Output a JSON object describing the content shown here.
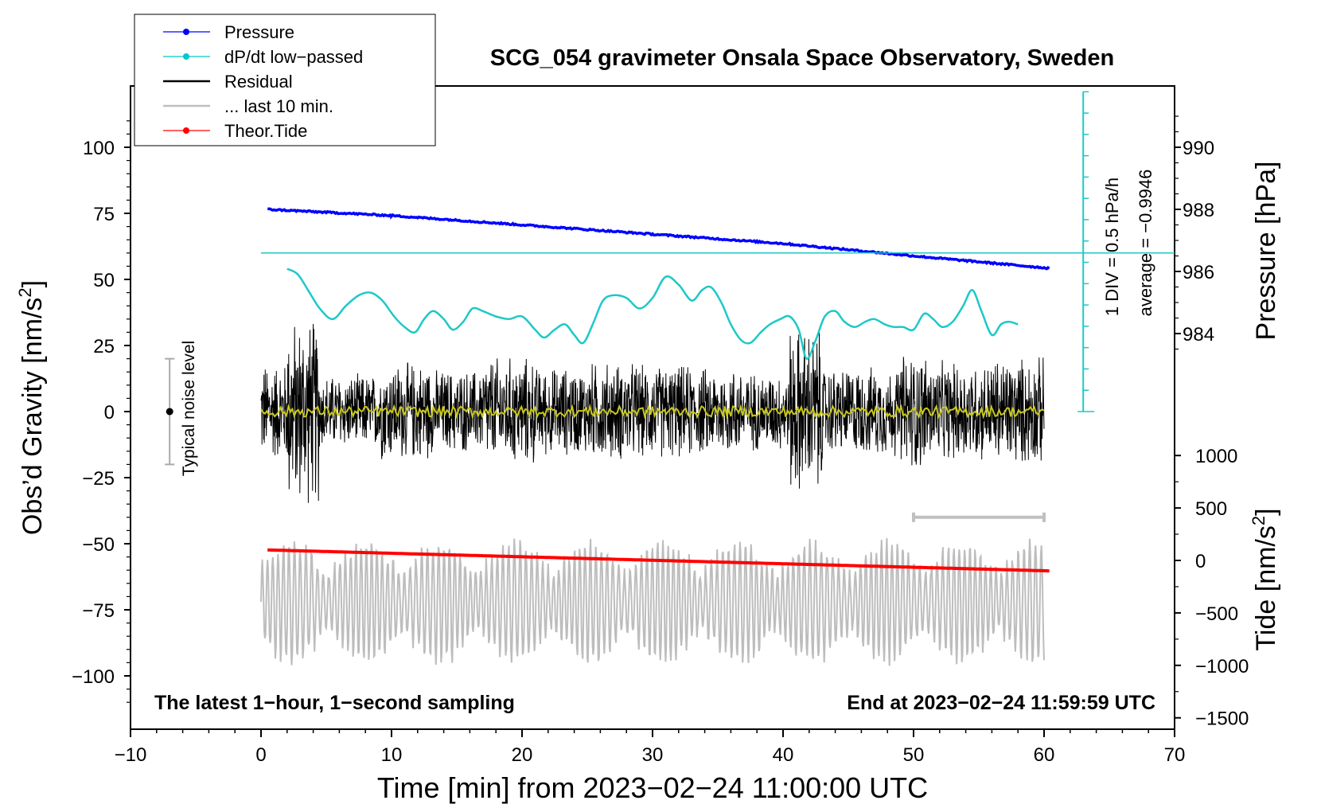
{
  "chart_data": {
    "type": "line",
    "title": "SCG_054 gravimeter Onsala Space Observatory, Sweden",
    "xlabel": "Time [min] from 2023−02−24 11:00:00 UTC",
    "ylabel_left": "Obs’d Gravity [nm/s",
    "ylabel_left_sup": "2",
    "ylabel_left_end": "]",
    "ylabel_pressure": "Pressure [hPa]",
    "ylabel_tide": "Tide [nm/s",
    "ylabel_tide_sup": "2",
    "ylabel_tide_end": "]",
    "xlim": [
      -10,
      70
    ],
    "x_ticks": [
      -10,
      0,
      10,
      20,
      30,
      40,
      50,
      60,
      70
    ],
    "x_tick_labels": [
      "−10",
      "0",
      "10",
      "20",
      "30",
      "40",
      "50",
      "60",
      "70"
    ],
    "ylim_gravity": [
      -120,
      120
    ],
    "gravity_ticks": [
      100,
      75,
      50,
      25,
      0,
      -25,
      -50,
      -75,
      -100
    ],
    "gravity_tick_labels": [
      "100",
      "75",
      "50",
      "25",
      "0",
      "−25",
      "−50",
      "−75",
      "−100"
    ],
    "pressure_ticks": [
      990,
      988,
      986,
      984
    ],
    "pressure_tick_labels": [
      "990",
      "988",
      "986",
      "984"
    ],
    "tide_ticks": [
      1000,
      500,
      0,
      -500,
      -1000,
      -1500
    ],
    "tide_tick_labels": [
      "1000",
      "500",
      "0",
      "−500",
      "−1000",
      "−1500"
    ],
    "legend": [
      {
        "name": "Pressure",
        "color": "#0000ff",
        "marker": true
      },
      {
        "name": "dP/dt low−passed",
        "color": "#00c8c8",
        "marker": true
      },
      {
        "name": "Residual",
        "color": "#000000",
        "marker": false
      },
      {
        "name": "... last 10 min.",
        "color": "#c0c0c0",
        "marker": false
      },
      {
        "name": "Theor.Tide",
        "color": "#ff0000",
        "marker": true
      }
    ],
    "noise_level": {
      "label": "Typical noise level",
      "x": -7,
      "center": 0,
      "half_range": 20
    },
    "bottom_left_note": "The latest 1−hour, 1−second sampling",
    "bottom_right_note": "End at 2023−02−24 11:59:59 UTC",
    "dpdt_scale": {
      "label1": "1 DIV = 0.5 hPa/h",
      "label2": "average = −0.9946",
      "x": 63,
      "baseline_gravity": 60,
      "top_gravity": 121,
      "bottom_gravity": 0
    },
    "last10_bracket": {
      "x_start": 50,
      "x_end": 60,
      "gravity_level": -40
    },
    "series": [
      {
        "name": "Pressure",
        "units": "hPa",
        "x": [
          0.5,
          10,
          20,
          30,
          40,
          50,
          60.5
        ],
        "values": [
          988.0,
          987.8,
          987.5,
          987.2,
          986.9,
          986.5,
          986.1
        ]
      },
      {
        "name": "dP/dt low−passed",
        "units": "gravity-axis position",
        "x": [
          2,
          2.8,
          3.6,
          4.5,
          5.5,
          6.5,
          7.5,
          8.4,
          9.3,
          10.2,
          11,
          11.8,
          12.5,
          13.2,
          14,
          14.7,
          15.5,
          16.2,
          17,
          18,
          19,
          20,
          21,
          21.7,
          22.5,
          23.3,
          24,
          24.7,
          25.5,
          26.2,
          27,
          28,
          29,
          30,
          31,
          32,
          33,
          33.8,
          34.5,
          35.3,
          36,
          36.8,
          37.5,
          38.3,
          39,
          39.8,
          40.5,
          41.2,
          41.8,
          42.5,
          43.2,
          44,
          44.7,
          45.5,
          46.3,
          47,
          47.8,
          48.5,
          49.2,
          50,
          50.8,
          51.5,
          52.2,
          53,
          53.8,
          54.5,
          55.2,
          56,
          56.7,
          57.3,
          58
        ],
        "values": [
          54,
          52,
          46,
          39,
          35,
          40,
          44,
          45,
          42,
          36,
          32,
          30,
          35,
          38,
          35,
          31,
          34,
          39,
          38,
          36,
          35,
          36,
          31,
          28,
          31,
          33,
          29,
          26,
          34,
          42,
          44,
          43,
          39,
          43,
          51,
          48,
          42,
          46,
          47,
          41,
          33,
          27,
          26,
          30,
          33,
          35,
          36,
          31,
          20,
          27,
          36,
          38,
          34,
          32,
          34,
          35,
          33,
          32,
          32,
          31,
          37,
          35,
          32,
          34,
          40,
          46,
          38,
          29,
          33,
          34,
          33
        ]
      },
      {
        "name": "Residual",
        "units": "nm/s2",
        "x_range": [
          0,
          60
        ],
        "amplitude_segments": [
          {
            "from": 0,
            "to": 2,
            "amp": 20
          },
          {
            "from": 2,
            "to": 4.5,
            "amp": 38
          },
          {
            "from": 4.5,
            "to": 9,
            "amp": 15
          },
          {
            "from": 9,
            "to": 13,
            "amp": 20
          },
          {
            "from": 13,
            "to": 17,
            "amp": 17
          },
          {
            "from": 17,
            "to": 21,
            "amp": 22
          },
          {
            "from": 21,
            "to": 25,
            "amp": 18
          },
          {
            "from": 25,
            "to": 29,
            "amp": 20
          },
          {
            "from": 29,
            "to": 33,
            "amp": 19
          },
          {
            "from": 33,
            "to": 37,
            "amp": 18
          },
          {
            "from": 37,
            "to": 40.5,
            "amp": 16
          },
          {
            "from": 40.5,
            "to": 43,
            "amp": 34
          },
          {
            "from": 43,
            "to": 49,
            "amp": 18
          },
          {
            "from": 49,
            "to": 51,
            "amp": 24
          },
          {
            "from": 51,
            "to": 56,
            "amp": 20
          },
          {
            "from": 56,
            "to": 60,
            "amp": 22
          }
        ]
      },
      {
        "name": "Residual (smoothed)",
        "units": "nm/s2",
        "x_range": [
          0,
          60
        ],
        "level": 0,
        "amp": 2
      },
      {
        "name": "... last 10 min.",
        "units": "gravity-axis position",
        "x_range": [
          0,
          60
        ],
        "center": -72,
        "amp": 22
      },
      {
        "name": "Theor.Tide",
        "units": "nm/s2 (tide axis)",
        "x": [
          0.5,
          60.5
        ],
        "values": [
          100,
          -100
        ]
      }
    ]
  }
}
